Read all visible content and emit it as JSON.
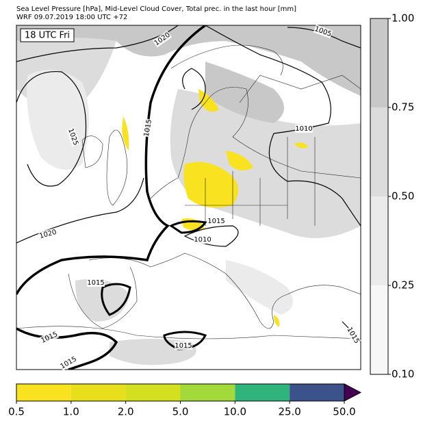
{
  "header": {
    "title": "Sea Level Pressure [hPa], Mid-Level Cloud Cover, Total prec. in the last hour [mm]",
    "subtitle": "WRF 09.07.2019 18:00 UTC +72"
  },
  "map": {
    "time_label": "18 UTC Fri",
    "isobar_labels": [
      "1020",
      "1005",
      "1015",
      "1025",
      "1010",
      "1015",
      "1010",
      "1020",
      "1015",
      "1015",
      "1015",
      "1015",
      "1015"
    ]
  },
  "cloud_colorbar": {
    "ticks": [
      {
        "value": 0.1,
        "label": "0.10"
      },
      {
        "value": 0.25,
        "label": "0.25"
      },
      {
        "value": 0.5,
        "label": "0.50"
      },
      {
        "value": 0.75,
        "label": "0.75"
      },
      {
        "value": 1.0,
        "label": "1.00"
      }
    ],
    "colors": [
      "#f7f7f7",
      "#ebebeb",
      "#dcdcdc",
      "#c8c8c8"
    ]
  },
  "precip_colorbar": {
    "ticks": [
      {
        "value": 0.5,
        "label": "0.5"
      },
      {
        "value": 1.0,
        "label": "1.0"
      },
      {
        "value": 2.0,
        "label": "2.0"
      },
      {
        "value": 5.0,
        "label": "5.0"
      },
      {
        "value": 10.0,
        "label": "10.0"
      },
      {
        "value": 25.0,
        "label": "25.0"
      },
      {
        "value": 50.0,
        "label": "50.0"
      }
    ],
    "colors": [
      "#f9e21f",
      "#e7df1b",
      "#d4df1f",
      "#a3d93a",
      "#2fb47c",
      "#3b528b"
    ],
    "extend_color": "#440154"
  }
}
